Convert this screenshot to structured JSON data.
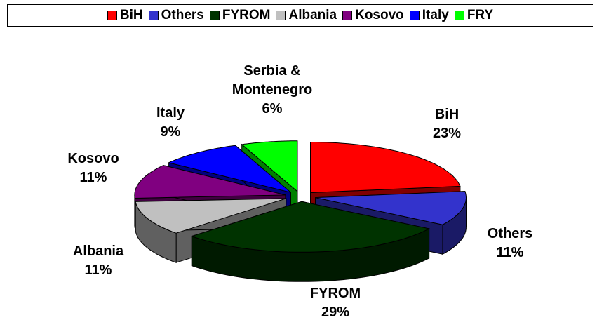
{
  "chart_data": {
    "type": "pie",
    "categories": [
      "BiH",
      "Others",
      "FYROM",
      "Albania",
      "Kosovo",
      "Italy",
      "FRY"
    ],
    "slice_labels": [
      "BiH",
      "Others",
      "FYROM",
      "Albania",
      "Kosovo",
      "Italy",
      "Serbia & Montenegro"
    ],
    "values": [
      23,
      11,
      29,
      11,
      11,
      9,
      6
    ],
    "value_labels": [
      "23%",
      "11%",
      "29%",
      "11%",
      "11%",
      "9%",
      "6%"
    ],
    "colors": [
      "#ff0000",
      "#3333cc",
      "#003300",
      "#c0c0c0",
      "#800080",
      "#0000ff",
      "#00ff00"
    ],
    "legend": "top"
  }
}
